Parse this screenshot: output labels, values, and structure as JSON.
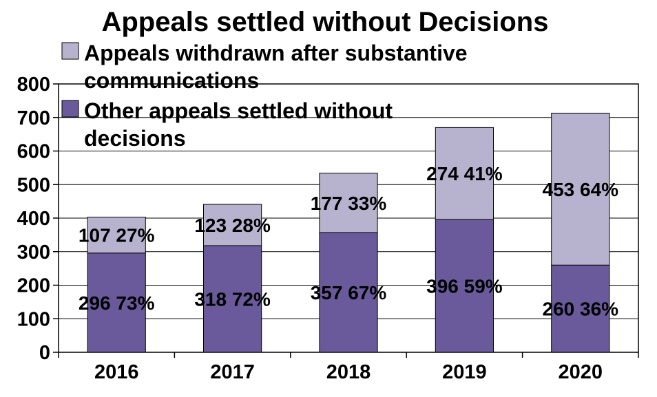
{
  "chart_data": {
    "type": "bar",
    "stacked": true,
    "title": "Appeals settled without Decisions",
    "categories": [
      "2016",
      "2017",
      "2018",
      "2019",
      "2020"
    ],
    "series": [
      {
        "name": "Other appeals settled without decisions",
        "values": [
          296,
          318,
          357,
          396,
          260
        ],
        "labels": [
          "296 73%",
          "318 72%",
          "357 67%",
          "396 59%",
          "260 36%"
        ],
        "color": "#6a5a9c"
      },
      {
        "name": "Appeals withdrawn after substantive communications",
        "values": [
          107,
          123,
          177,
          274,
          453
        ],
        "labels": [
          "107 27%",
          "123 28%",
          "177 33%",
          "274 41%",
          "453 64%"
        ],
        "color": "#b7b3cf"
      }
    ],
    "ylim": [
      0,
      800
    ],
    "yticks": [
      "0",
      "100",
      "200",
      "300",
      "400",
      "500",
      "600",
      "700",
      "800"
    ],
    "grid": true,
    "legend_position": "top-left"
  }
}
